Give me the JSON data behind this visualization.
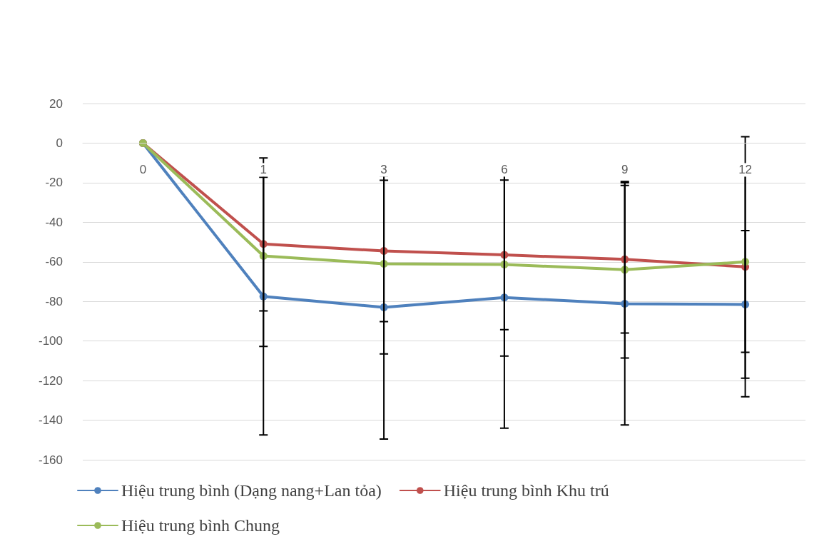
{
  "chart_data": {
    "type": "line",
    "categories": [
      "0",
      "1",
      "3",
      "6",
      "9",
      "12"
    ],
    "series": [
      {
        "name": "Hiệu trung bình (Dạng nang+Lan tỏa)",
        "color": "#4f81bd",
        "values": [
          0,
          -77.5,
          -83,
          -78,
          -81.2,
          -81.5
        ],
        "errors": [
          null,
          70,
          66.5,
          66,
          61.2,
          37.3
        ]
      },
      {
        "name": "Hiệu trung bình Khu trú",
        "color": "#c0504d",
        "values": [
          0,
          -51,
          -54.5,
          -56.5,
          -58.7,
          -62.5
        ],
        "errors": [
          null,
          33.8,
          35.7,
          37.8,
          37.3,
          65.7
        ]
      },
      {
        "name": "Hiệu trung bình Chung",
        "color": "#9bbb59",
        "values": [
          0,
          -57,
          -61,
          -61.3,
          -64,
          -60
        ],
        "errors": [
          null,
          45.7,
          45.5,
          46.3,
          44.6,
          45.7
        ]
      }
    ],
    "ylim": [
      -160,
      20
    ],
    "yticks": [
      -160,
      -140,
      -120,
      -100,
      -80,
      -60,
      -40,
      -20,
      0,
      20
    ],
    "grid": "y",
    "legend": "bottom",
    "marker": "circle",
    "line_style": "solid"
  }
}
